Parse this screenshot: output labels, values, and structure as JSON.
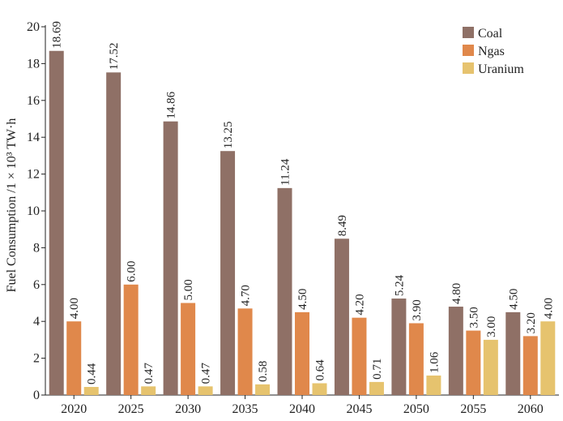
{
  "chart_data": {
    "type": "bar",
    "categories": [
      "2020",
      "2025",
      "2030",
      "2035",
      "2040",
      "2045",
      "2050",
      "2055",
      "2060"
    ],
    "series": [
      {
        "name": "Coal",
        "color": "#8f7066",
        "values": [
          18.69,
          17.52,
          14.86,
          13.25,
          11.24,
          8.49,
          5.24,
          4.8,
          4.5
        ],
        "labels": [
          "18.69",
          "17.52",
          "14.86",
          "13.25",
          "11.24",
          "8.49",
          "5.24",
          "4.80",
          "4.50"
        ]
      },
      {
        "name": "Ngas",
        "color": "#e0884b",
        "values": [
          4.0,
          6.0,
          5.0,
          4.7,
          4.5,
          4.2,
          3.9,
          3.5,
          3.2
        ],
        "labels": [
          "4.00",
          "6.00",
          "5.00",
          "4.70",
          "4.50",
          "4.20",
          "3.90",
          "3.50",
          "3.20"
        ]
      },
      {
        "name": "Uranium",
        "color": "#e6c36e",
        "values": [
          0.44,
          0.47,
          0.47,
          0.58,
          0.64,
          0.71,
          1.06,
          3.0,
          4.0
        ],
        "labels": [
          "0.44",
          "0.47",
          "0.47",
          "0.58",
          "0.64",
          "0.71",
          "1.06",
          "3.00",
          "4.00"
        ]
      }
    ],
    "ylabel": "Fuel Consumption /1 × 10³ TW·h",
    "ylim": [
      0,
      20
    ],
    "yticks": [
      "0",
      "2",
      "4",
      "6",
      "8",
      "10",
      "12",
      "14",
      "16",
      "18",
      "20"
    ],
    "legend_position": "top-right",
    "grid": false
  }
}
